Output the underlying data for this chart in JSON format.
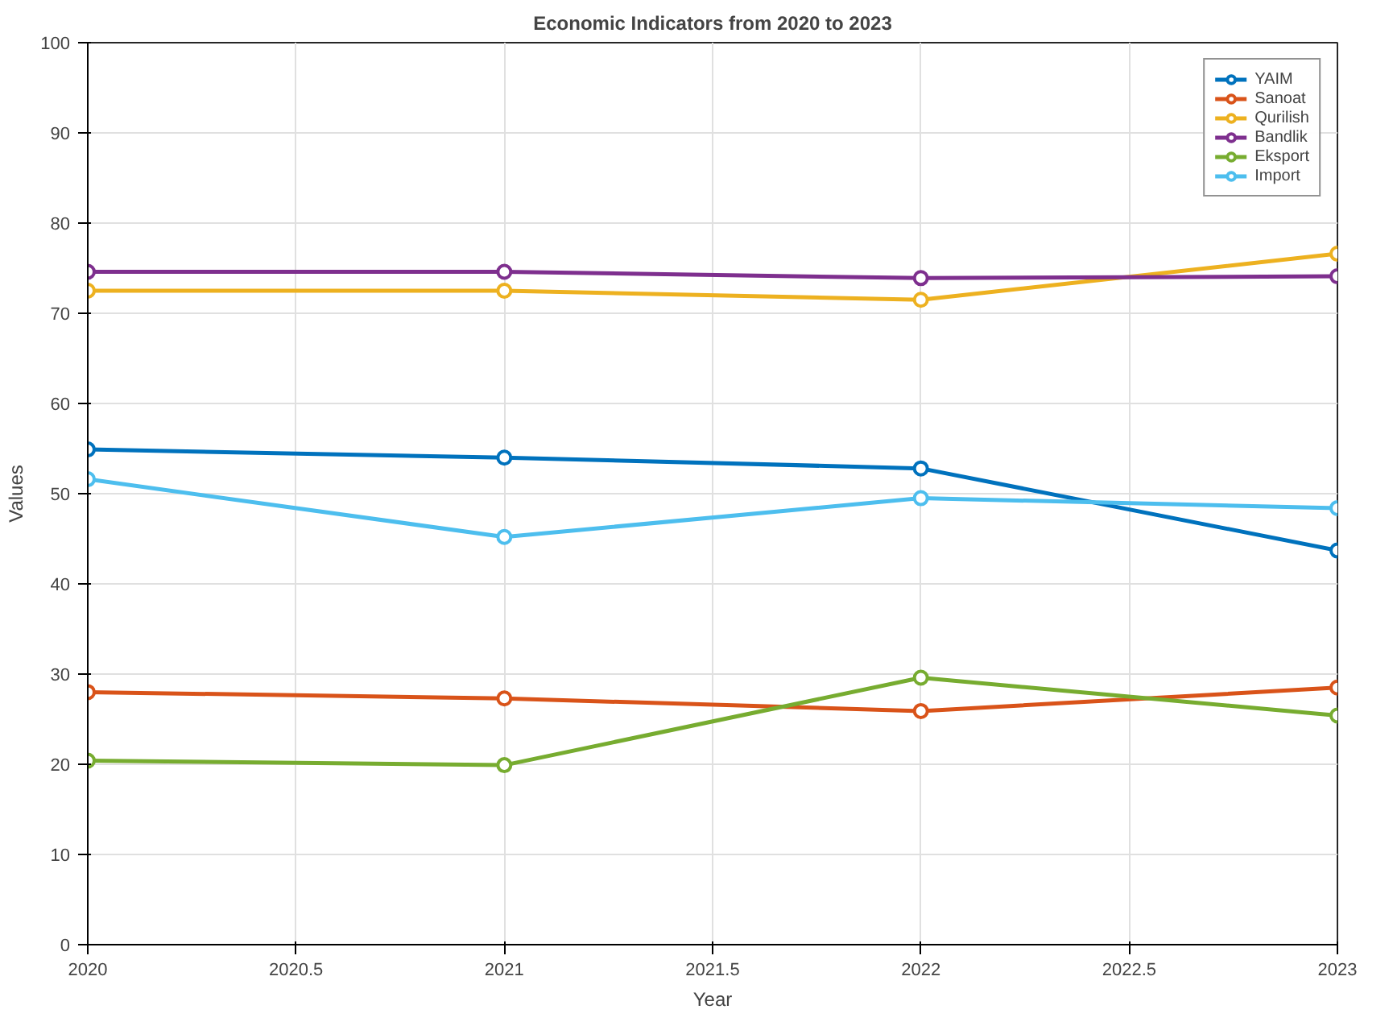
{
  "chart_data": {
    "type": "line",
    "title": "Economic Indicators from 2020 to 2023",
    "xlabel": "Year",
    "ylabel": "Values",
    "x": [
      2020,
      2021,
      2022,
      2023
    ],
    "xlim": [
      2020,
      2023
    ],
    "xticks": [
      2020,
      2020.5,
      2021,
      2021.5,
      2022,
      2022.5,
      2023
    ],
    "ylim": [
      0,
      100
    ],
    "yticks": [
      0,
      10,
      20,
      30,
      40,
      50,
      60,
      70,
      80,
      90,
      100
    ],
    "grid": true,
    "legend": "top right",
    "marker": "circle",
    "line_style": "solid",
    "series": [
      {
        "name": "YAIM",
        "color": "#0072bd",
        "values": [
          54.9,
          54.0,
          52.8,
          43.7
        ]
      },
      {
        "name": "Sanoat",
        "color": "#d95319",
        "values": [
          28.0,
          27.3,
          25.9,
          28.5
        ]
      },
      {
        "name": "Qurilish",
        "color": "#edb120",
        "values": [
          72.5,
          72.5,
          71.5,
          76.6
        ]
      },
      {
        "name": "Bandlik",
        "color": "#7e2f8e",
        "values": [
          74.6,
          74.6,
          73.9,
          74.1
        ]
      },
      {
        "name": "Eksport",
        "color": "#77ac30",
        "values": [
          20.4,
          19.9,
          29.6,
          25.4
        ]
      },
      {
        "name": "Import",
        "color": "#4dbeee",
        "values": [
          51.6,
          45.2,
          49.5,
          48.4
        ]
      }
    ]
  }
}
